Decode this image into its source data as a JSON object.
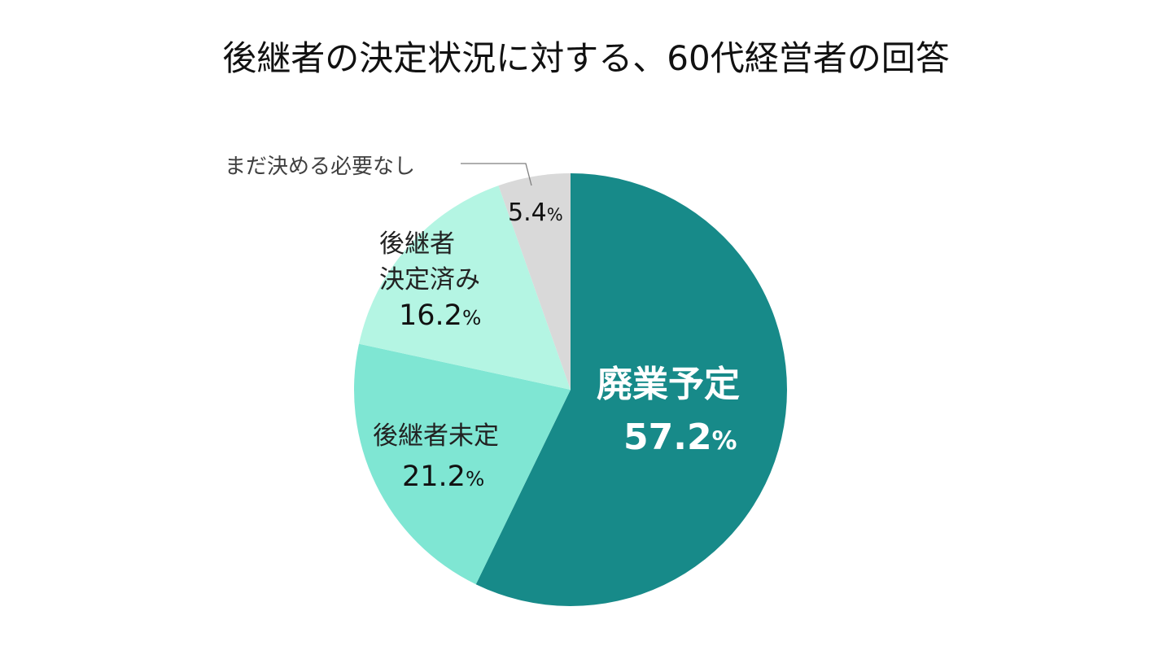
{
  "title": "後継者の決定状況に対する、60代経営者の回答",
  "labels": {
    "haigyo": {
      "name": "廃業予定",
      "value": "57.2",
      "unit": "%"
    },
    "mitei": {
      "name": "後継者未定",
      "value": "21.2",
      "unit": "%"
    },
    "kettei_line1": "後継者",
    "kettei_line2": "決定済み",
    "kettei": {
      "value": "16.2",
      "unit": "%"
    },
    "mada": {
      "name": "まだ決める必要なし",
      "value": "5.4",
      "unit": "%"
    }
  },
  "colors": {
    "haigyo": "#178a89",
    "mitei": "#7fe6d3",
    "kettei": "#b4f5e3",
    "mada": "#d9d9d9"
  },
  "chart_data": {
    "type": "pie",
    "title": "後継者の決定状況に対する、60代経営者の回答",
    "categories": [
      "廃業予定",
      "後継者未定",
      "後継者決定済み",
      "まだ決める必要なし"
    ],
    "values": [
      57.2,
      21.2,
      16.2,
      5.4
    ],
    "unit": "%",
    "start_angle": "12 o'clock, clockwise",
    "legend": "none (data labels on slices)"
  }
}
